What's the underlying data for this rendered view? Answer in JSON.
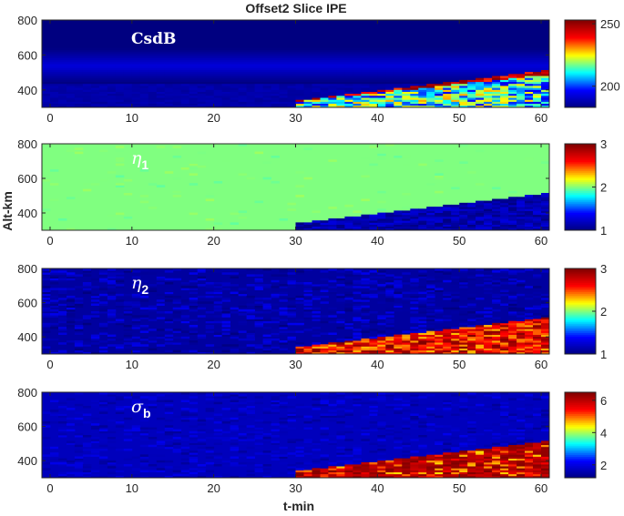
{
  "figure": {
    "title": "Offset2 Slice IPE",
    "xlabel": "t-min",
    "ylabel": "Alt-km"
  },
  "chart_data": [
    {
      "type": "heatmap",
      "annotation": "CsdB",
      "annotation_sub": "",
      "xlim": [
        -1,
        61
      ],
      "ylim": [
        300,
        800
      ],
      "xticks": [
        0,
        10,
        20,
        30,
        40,
        50,
        60
      ],
      "yticks": [
        400,
        600,
        800
      ],
      "colorbar": {
        "range": [
          183,
          253
        ],
        "ticks": [
          200,
          250
        ]
      },
      "background_value": 183,
      "feature": "Region below a boundary rising from about 340 km at t=30 min to about 510 km at t=60 min shows mixed values ~195-250 with red near the boundary"
    },
    {
      "type": "heatmap",
      "annotation": "η",
      "annotation_sub": "1",
      "xlim": [
        -1,
        61
      ],
      "ylim": [
        300,
        800
      ],
      "xticks": [
        0,
        10,
        20,
        30,
        40,
        50,
        60
      ],
      "yticks": [
        400,
        600,
        800
      ],
      "colorbar": {
        "range": [
          1,
          3
        ],
        "ticks": [
          1,
          2,
          3
        ]
      },
      "background_value": 2,
      "feature": "Region below the boundary (t>30 min) drops to ~1.0-1.3"
    },
    {
      "type": "heatmap",
      "annotation": "η",
      "annotation_sub": "2",
      "xlim": [
        -1,
        61
      ],
      "ylim": [
        300,
        800
      ],
      "xticks": [
        0,
        10,
        20,
        30,
        40,
        50,
        60
      ],
      "yticks": [
        400,
        600,
        800
      ],
      "colorbar": {
        "range": [
          1,
          3
        ],
        "ticks": [
          1,
          2,
          3
        ]
      },
      "background_value": 1.1,
      "feature": "Region below the boundary (t>30 min) rises to ~2.4-3"
    },
    {
      "type": "heatmap",
      "annotation": "σ",
      "annotation_sub": "b",
      "xlim": [
        -1,
        61
      ],
      "ylim": [
        300,
        800
      ],
      "xticks": [
        0,
        10,
        20,
        30,
        40,
        50,
        60
      ],
      "yticks": [
        400,
        600,
        800
      ],
      "colorbar": {
        "range": [
          1.2,
          6.5
        ],
        "ticks": [
          2,
          4,
          6
        ]
      },
      "background_value": 1.7,
      "feature": "Region below the boundary (t>30 min) rises to ~5-6.5 (dark red)"
    }
  ]
}
